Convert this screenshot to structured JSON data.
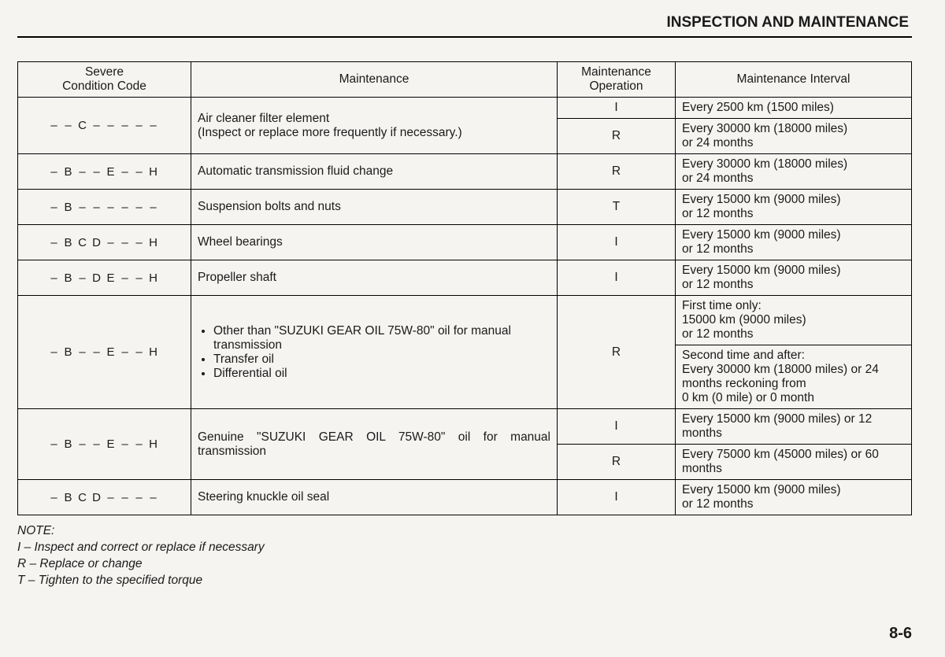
{
  "header": "INSPECTION AND MAINTENANCE",
  "columns": {
    "code": "Severe\nCondition Code",
    "maintenance": "Maintenance",
    "operation": "Maintenance\nOperation",
    "interval": "Maintenance Interval"
  },
  "codes": {
    "r1": [
      "–",
      "–",
      "C",
      "–",
      "–",
      "–",
      "–",
      "–"
    ],
    "r2": [
      "–",
      "B",
      "–",
      "–",
      "E",
      "–",
      "–",
      "H"
    ],
    "r3": [
      "–",
      "B",
      "–",
      "–",
      "–",
      "–",
      "–",
      "–"
    ],
    "r4": [
      "–",
      "B",
      "C",
      "D",
      "–",
      "–",
      "–",
      "H"
    ],
    "r5": [
      "–",
      "B",
      "–",
      "D",
      "E",
      "–",
      "–",
      "H"
    ],
    "r6": [
      "–",
      "B",
      "–",
      "–",
      "E",
      "–",
      "–",
      "H"
    ],
    "r7": [
      "–",
      "B",
      "–",
      "–",
      "E",
      "–",
      "–",
      "H"
    ],
    "r8": [
      "–",
      "B",
      "C",
      "D",
      "–",
      "–",
      "–",
      "–"
    ]
  },
  "maint": {
    "r1": "Air cleaner filter element\n(Inspect or replace more frequently if necessary.)",
    "r2": "Automatic transmission fluid change",
    "r3": "Suspension bolts and nuts",
    "r4": "Wheel bearings",
    "r5": "Propeller shaft",
    "r6_b1": "Other than \"SUZUKI GEAR OIL 75W-80\" oil for manual transmission",
    "r6_b2": "Transfer oil",
    "r6_b3": "Differential oil",
    "r7": "Genuine \"SUZUKI GEAR OIL 75W-80\" oil for manual transmission",
    "r8": "Steering knuckle oil seal"
  },
  "op": {
    "r1a": "I",
    "r1b": "R",
    "r2": "R",
    "r3": "T",
    "r4": "I",
    "r5": "I",
    "r6": "R",
    "r7a": "I",
    "r7b": "R",
    "r8": "I"
  },
  "interval": {
    "r1a": "Every 2500 km (1500 miles)",
    "r1b": "Every 30000 km (18000 miles)\nor 24 months",
    "r2": "Every 30000 km (18000 miles)\nor 24 months",
    "r3": "Every 15000 km (9000 miles)\nor 12 months",
    "r4": "Every 15000 km (9000 miles)\nor 12 months",
    "r5": "Every 15000 km (9000 miles)\nor 12 months",
    "r6a": "First time only:\n15000 km (9000 miles)\nor 12 months",
    "r6b": "Second time and after:\nEvery 30000 km (18000 miles) or 24 months reckoning from\n0 km (0 mile) or 0 month",
    "r7a": "Every 15000 km (9000 miles) or 12 months",
    "r7b": "Every 75000 km (45000 miles) or 60 months",
    "r8": "Every 15000 km (9000 miles)\nor 12 months"
  },
  "note": {
    "title": "NOTE:",
    "i": "I – Inspect and correct or replace if necessary",
    "r": "R – Replace or change",
    "t": "T – Tighten to the specified torque"
  },
  "page_number": "8-6",
  "col_widths": {
    "code": "220px",
    "maint": "auto",
    "op": "150px",
    "interval": "300px"
  }
}
